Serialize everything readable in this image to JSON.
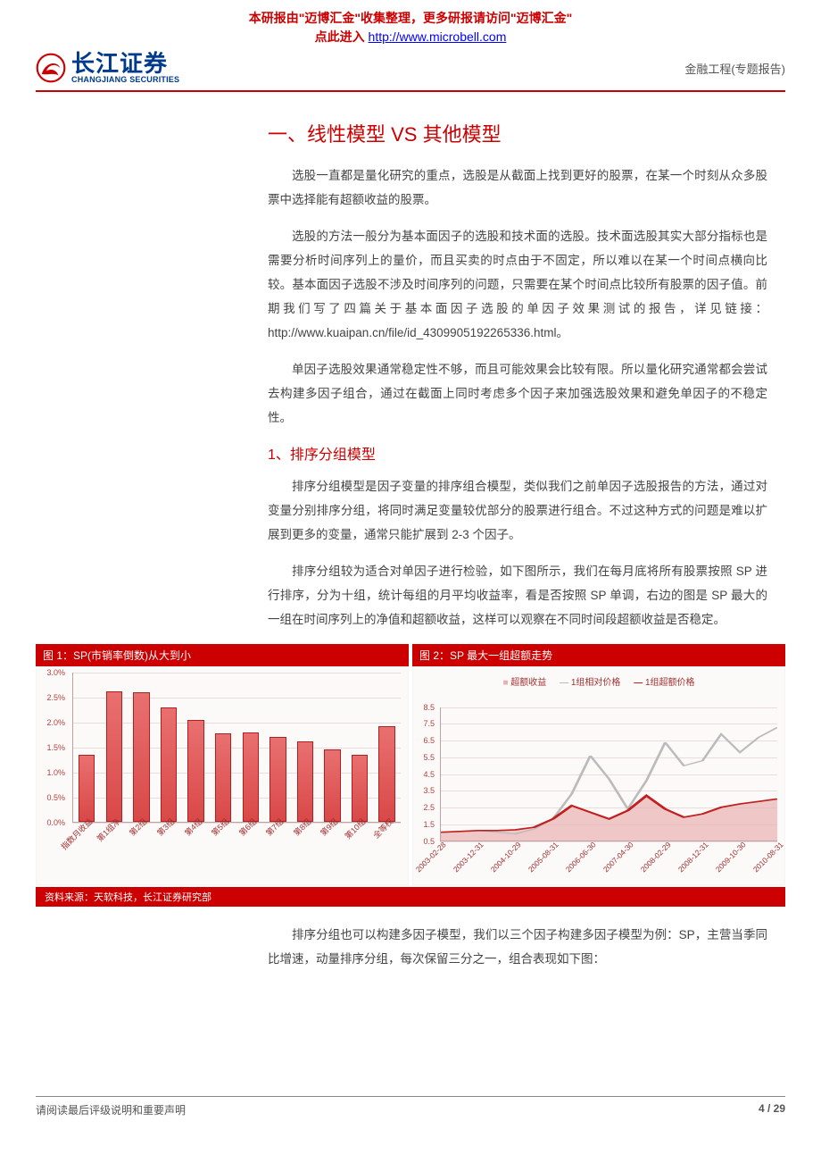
{
  "watermark": {
    "line1_a": "本研报由\"迈博汇金\"收集整理，更多研报请访问\"迈博汇金\"",
    "line2_prefix": "点此进入 ",
    "link_text": "http://www.microbell.com"
  },
  "header": {
    "logo_cn": "长江证券",
    "logo_en": "CHANGJIANG SECURITIES",
    "right": "金融工程(专题报告)"
  },
  "body": {
    "h1": "一、线性模型 VS 其他模型",
    "p1": "选股一直都是量化研究的重点，选股是从截面上找到更好的股票，在某一个时刻从众多股票中选择能有超额收益的股票。",
    "p2": "选股的方法一般分为基本面因子的选股和技术面的选股。技术面选股其实大部分指标也是需要分析时间序列上的量价，而且买卖的时点由于不固定，所以难以在某一个时间点横向比较。基本面因子选股不涉及时间序列的问题，只需要在某个时间点比较所有股票的因子值。前期我们写了四篇关于基本面因子选股的单因子效果测试的报告，详见链接：http://www.kuaipan.cn/file/id_4309905192265336.html。",
    "p3": "单因子选股效果通常稳定性不够，而且可能效果会比较有限。所以量化研究通常都会尝试去构建多因子组合，通过在截面上同时考虑多个因子来加强选股效果和避免单因子的不稳定性。",
    "h2": "1、排序分组模型",
    "p4": "排序分组模型是因子变量的排序组合模型，类似我们之前单因子选股报告的方法，通过对变量分别排序分组，将同时满足变量较优部分的股票进行组合。不过这种方式的问题是难以扩展到更多的变量，通常只能扩展到 2-3 个因子。",
    "p5": "排序分组较为适合对单因子进行检验，如下图所示，我们在每月底将所有股票按照 SP 进行排序，分为十组，统计每组的月平均收益率，看是否按照 SP 单调，右边的图是 SP 最大的一组在时间序列上的净值和超额收益，这样可以观察在不同时间段超额收益是否稳定。",
    "p6": "排序分组也可以构建多因子模型，我们以三个因子构建多因子模型为例：SP，主营当季同比增速，动量排序分组，每次保留三分之一，组合表现如下图："
  },
  "chart1": {
    "title": "图 1：SP(市销率倒数)从大到小",
    "type": "bar",
    "ymax": 3.0,
    "ytick_step": 0.5,
    "yformat_suffix": "%",
    "bar_color": "#d94848",
    "grid_color": "#e8dcdc",
    "background_color": "#fcfaf9",
    "categories": [
      "指数月收益",
      "第1组净",
      "第2组",
      "第3组",
      "第4组",
      "第5组",
      "第6组",
      "第7组",
      "第8组",
      "第9组",
      "第10组",
      "全等权"
    ],
    "values": [
      1.35,
      2.62,
      2.6,
      2.3,
      2.05,
      1.78,
      1.8,
      1.7,
      1.62,
      1.45,
      1.35,
      1.92
    ]
  },
  "chart2": {
    "title": "图 2：SP 最大一组超额走势",
    "type": "line_area",
    "ymin": 0.5,
    "ymax": 8.5,
    "ytick_step": 1.0,
    "grid_color": "#e8dcdc",
    "background_color": "#fcfaf9",
    "legend": {
      "area": "超额收益",
      "main": "1组相对价格",
      "excess": "1组超额价格"
    },
    "area_color": "#e8b0b0",
    "main_line_color": "#bbbbbb",
    "excess_line_color": "#c02020",
    "x_labels": [
      "2003-02-28",
      "2003-12-31",
      "2004-10-29",
      "2005-08-31",
      "2006-06-30",
      "2007-04-30",
      "2008-02-29",
      "2008-12-31",
      "2009-10-30",
      "2010-08-31"
    ],
    "series_area": [
      1.0,
      1.05,
      1.1,
      1.1,
      1.15,
      1.3,
      1.8,
      2.6,
      2.2,
      1.8,
      2.3,
      3.2,
      2.4,
      1.9,
      2.1,
      2.5,
      2.7,
      2.85,
      3.0
    ],
    "series_main": [
      1.0,
      1.05,
      1.1,
      1.0,
      0.9,
      1.2,
      1.8,
      3.3,
      5.6,
      4.2,
      2.4,
      4.1,
      6.4,
      5.0,
      5.3,
      6.9,
      5.8,
      6.7,
      7.3
    ],
    "series_excess": [
      1.0,
      1.05,
      1.1,
      1.1,
      1.15,
      1.3,
      1.8,
      2.6,
      2.2,
      1.8,
      2.3,
      3.2,
      2.4,
      1.9,
      2.1,
      2.5,
      2.7,
      2.85,
      3.0
    ]
  },
  "source": "资料来源：天软科技，长江证券研究部",
  "footer": {
    "left": "请阅读最后评级说明和重要声明",
    "right": "4 / 29"
  }
}
